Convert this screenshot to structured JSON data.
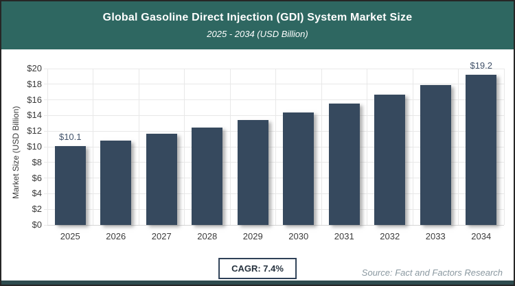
{
  "header": {
    "title": "Global Gasoline Direct Injection (GDI) System Market Size",
    "subtitle": "2025 - 2034 (USD Billion)"
  },
  "colors": {
    "header_bg": "#2e6761",
    "bar": "#36495e",
    "grid": "#e8e8e8",
    "baseline": "#d5d5d5",
    "footer_strip": "#2e4b4e"
  },
  "chart_data": {
    "type": "bar",
    "title": "Global Gasoline Direct Injection (GDI) System Market Size",
    "subtitle": "2025 - 2034 (USD Billion)",
    "categories": [
      "2025",
      "2026",
      "2027",
      "2028",
      "2029",
      "2030",
      "2031",
      "2032",
      "2033",
      "2034"
    ],
    "values": [
      10.1,
      10.8,
      11.7,
      12.5,
      13.4,
      14.4,
      15.5,
      16.7,
      17.9,
      19.2
    ],
    "point_labels": [
      "$10.1",
      "",
      "",
      "",
      "",
      "",
      "",
      "",
      "",
      "$19.2"
    ],
    "xlabel": "",
    "ylabel": "Market Size (USD Billion)",
    "ylim": [
      0,
      20
    ],
    "ytick_step": 2,
    "ytick_labels": [
      "$0",
      "$2",
      "$4",
      "$6",
      "$8",
      "$10",
      "$12",
      "$14",
      "$16",
      "$18",
      "$20"
    ],
    "grid": true,
    "legend_position": "none",
    "cagr": "7.4%"
  },
  "footer": {
    "cagr_label": "CAGR: 7.4%",
    "source": "Source: Fact and Factors Research"
  }
}
